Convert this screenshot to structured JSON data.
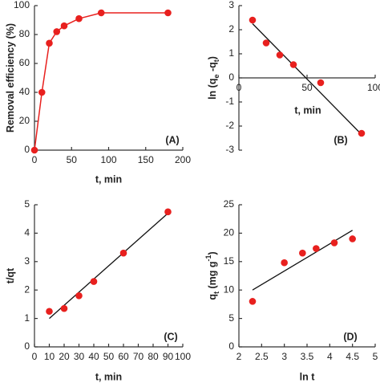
{
  "chart_data": [
    {
      "type": "line",
      "color": "#e8201e",
      "x": [
        0,
        10,
        20,
        30,
        40,
        60,
        90,
        180
      ],
      "values": [
        0,
        40,
        74,
        82,
        86,
        91,
        95,
        95
      ],
      "xlim": [
        0,
        200
      ],
      "xticks": [
        0,
        50,
        100,
        150,
        200
      ],
      "ylim": [
        0,
        100
      ],
      "yticks": [
        0,
        20,
        40,
        60,
        80,
        100
      ],
      "xlabel": "t, min",
      "ylabel": [
        {
          "text": "Removal efficiency (%)"
        }
      ],
      "panel_label": "(A)"
    },
    {
      "type": "scatter",
      "color": "#e8201e",
      "x": [
        10,
        20,
        30,
        40,
        60,
        90
      ],
      "values": [
        2.4,
        1.45,
        0.95,
        0.55,
        -0.2,
        -2.3
      ],
      "trendline": {
        "x": [
          10,
          90
        ],
        "y": [
          2.25,
          -2.35
        ]
      },
      "xlim": [
        0,
        100
      ],
      "xticks": [
        0,
        50,
        100
      ],
      "ylim": [
        -3,
        3
      ],
      "yticks": [
        -3,
        -2,
        -1,
        0,
        1,
        2,
        3
      ],
      "x_axis_at": 0,
      "xlabel": "t, min",
      "ylabel": [
        {
          "text": "ln (q"
        },
        {
          "text": "e",
          "sub": true
        },
        {
          "text": " -q"
        },
        {
          "text": "t",
          "sub": true
        },
        {
          "text": ")"
        }
      ],
      "panel_label": "(B)"
    },
    {
      "type": "scatter",
      "color": "#e8201e",
      "x": [
        10,
        20,
        30,
        40,
        60,
        90
      ],
      "values": [
        1.25,
        1.35,
        1.8,
        2.3,
        3.3,
        4.75
      ],
      "trendline": {
        "x": [
          10,
          90
        ],
        "y": [
          1.0,
          4.7
        ]
      },
      "xlim": [
        0,
        100
      ],
      "xticks": [
        0,
        10,
        20,
        30,
        40,
        50,
        60,
        70,
        80,
        90,
        100
      ],
      "ylim": [
        0,
        5
      ],
      "yticks": [
        0,
        1,
        2,
        3,
        4,
        5
      ],
      "xlabel": "t, min",
      "ylabel": [
        {
          "text": "t/qt"
        }
      ],
      "panel_label": "(C)"
    },
    {
      "type": "scatter",
      "color": "#e8201e",
      "x": [
        2.3,
        3,
        3.4,
        3.7,
        4.1,
        4.5
      ],
      "values": [
        8,
        14.8,
        16.5,
        17.3,
        18.3,
        19
      ],
      "trendline": {
        "x": [
          2.3,
          4.5
        ],
        "y": [
          10,
          20.5
        ]
      },
      "xlim": [
        2,
        5
      ],
      "xticks": [
        2,
        2.5,
        3,
        3.5,
        4,
        4.5,
        5
      ],
      "ylim": [
        0,
        25
      ],
      "yticks": [
        0,
        5,
        10,
        15,
        20,
        25
      ],
      "xlabel": "ln t",
      "ylabel": [
        {
          "text": "q"
        },
        {
          "text": "t",
          "sub": true
        },
        {
          "text": " (mg g"
        },
        {
          "text": "-1",
          "sup": true
        },
        {
          "text": ")"
        }
      ],
      "panel_label": "(D)"
    }
  ]
}
